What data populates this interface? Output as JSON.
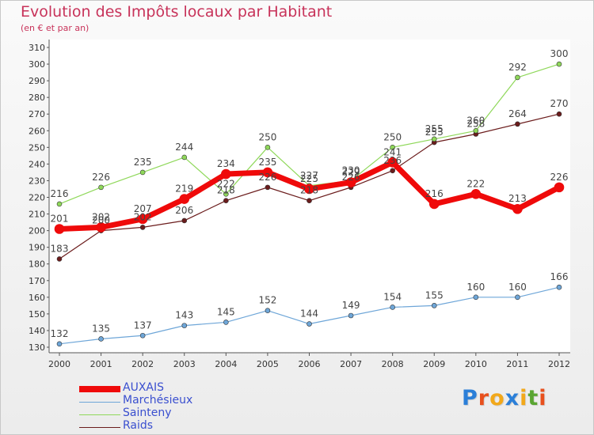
{
  "header": {
    "title": "Evolution des Impôts locaux par Habitant",
    "subtitle": "(en € et par an)"
  },
  "logo": {
    "letters": [
      "P",
      "r",
      "o",
      "x",
      "i",
      "t",
      "i"
    ],
    "colors": [
      "#2b7fd8",
      "#e8501d",
      "#f2a81a",
      "#2b7fd8",
      "#f2a81a",
      "#5aa532",
      "#e8501d"
    ]
  },
  "chart_data": {
    "type": "line",
    "x": [
      "2000",
      "2001",
      "2002",
      "2003",
      "2004",
      "2005",
      "2006",
      "2007",
      "2008",
      "2009",
      "2010",
      "2011",
      "2012"
    ],
    "ylim": [
      130,
      310
    ],
    "yticks": [
      130,
      140,
      150,
      160,
      170,
      180,
      190,
      200,
      210,
      220,
      230,
      240,
      250,
      260,
      270,
      280,
      290,
      300,
      310
    ],
    "grid": false,
    "legend": "bottom-left",
    "series": [
      {
        "name": "Raids",
        "color": "#6b1c1c",
        "width": 1.2,
        "marker": 3,
        "values": [
          183,
          200,
          202,
          206,
          218,
          226,
          218,
          226,
          236,
          253,
          258,
          264,
          270
        ]
      },
      {
        "name": "Marchésieux",
        "color": "#6ea6d8",
        "width": 1.2,
        "marker": 3,
        "values": [
          132,
          135,
          137,
          143,
          145,
          152,
          144,
          149,
          154,
          155,
          160,
          160,
          166
        ]
      },
      {
        "name": "Sainteny",
        "color": "#8fd85a",
        "width": 1.2,
        "marker": 3,
        "values": [
          216,
          226,
          235,
          244,
          222,
          250,
          227,
          230,
          250,
          255,
          260,
          292,
          300
        ]
      },
      {
        "name": "AUXAIS",
        "color": "#ef0a0a",
        "width": 7,
        "marker": 6,
        "values": [
          201,
          202,
          207,
          219,
          234,
          235,
          225,
          229,
          241,
          216,
          222,
          213,
          226
        ]
      }
    ],
    "legend_order": [
      "AUXAIS",
      "Marchésieux",
      "Sainteny",
      "Raids"
    ]
  }
}
